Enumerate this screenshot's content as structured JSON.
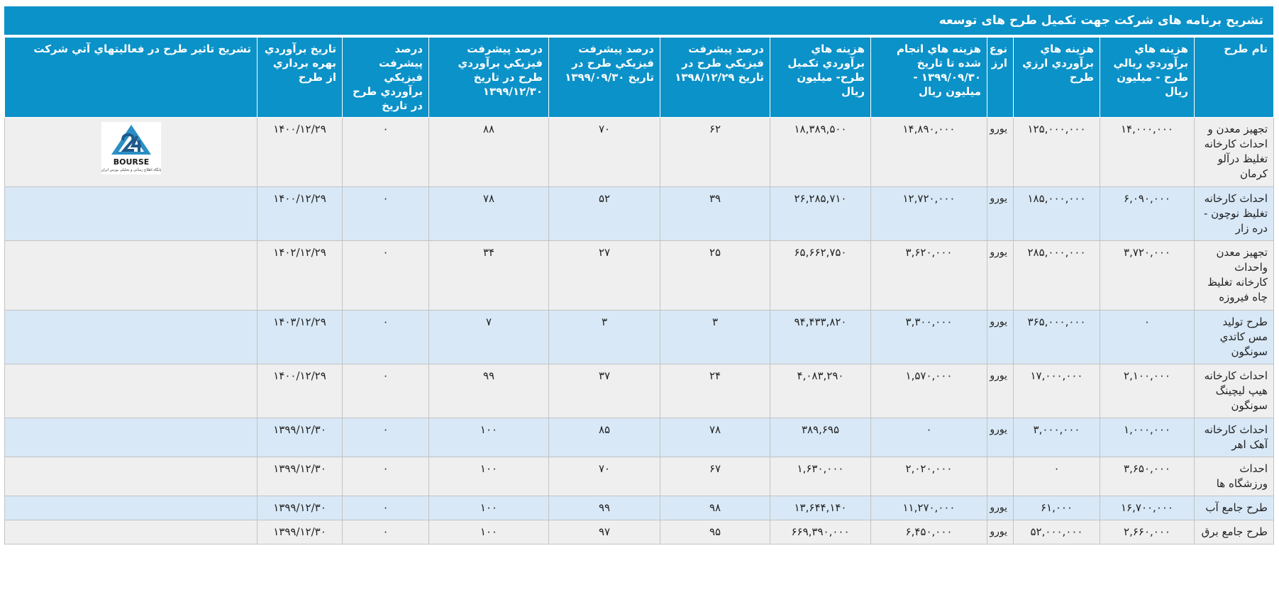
{
  "title": "تشریح برنامه های شرکت جهت تکمیل طرح های توسعه",
  "headers": [
    "نام طرح",
    "هزينه هاي برآوردي ريالي طرح - ميليون ريال",
    "هزينه هاي برآوردي ارزي طرح",
    "نوع ارز",
    "هزينه هاي انجام شده تا تاريخ ۱۳۹۹/۰۹/۳۰ - ميليون ريال",
    "هزينه هاي برآوردي تکميل طرح- ميليون ريال",
    "درصد پيشرفت فيزيکي طرح در تاريخ ۱۳۹۸/۱۲/۲۹",
    "درصد پيشرفت فيزيکي طرح در تاريخ ۱۳۹۹/۰۹/۳۰",
    "درصد پيشرفت فيزيکي برآوردي طرح در تاريخ ۱۳۹۹/۱۲/۳۰",
    "درصد پيشرفت فيزيکي برآوردي طرح در تاريخ",
    "تاريخ برآوردي بهره برداري از طرح",
    "تشريح تاثير طرح در فعاليتهاي آتي شرکت"
  ],
  "logo": {
    "text": "BOURSE",
    "caption": "پایگاه اطلاع رسانی و تحلیلی بورس ایران"
  },
  "rows": [
    [
      "تجهیز معدن و احداث کارخانه تغلیظ درآلو کرمان",
      "۱۴,۰۰۰,۰۰۰",
      "۱۲۵,۰۰۰,۰۰۰",
      "یورو",
      "۱۴,۸۹۰,۰۰۰",
      "۱۸,۳۸۹,۵۰۰",
      "۶۲",
      "۷۰",
      "۸۸",
      "۰",
      "۱۴۰۰/۱۲/۲۹",
      ""
    ],
    [
      "احداث کارخانه تغلیظ نوچون - دره زار",
      "۶,۰۹۰,۰۰۰",
      "۱۸۵,۰۰۰,۰۰۰",
      "یورو",
      "۱۲,۷۲۰,۰۰۰",
      "۲۶,۲۸۵,۷۱۰",
      "۳۹",
      "۵۲",
      "۷۸",
      "۰",
      "۱۴۰۰/۱۲/۲۹",
      ""
    ],
    [
      "تجهیز معدن واحداث کارخانه تغلیظ چاه فیروزه",
      "۳,۷۲۰,۰۰۰",
      "۲۸۵,۰۰۰,۰۰۰",
      "یورو",
      "۳,۶۲۰,۰۰۰",
      "۶۵,۶۶۲,۷۵۰",
      "۲۵",
      "۲۷",
      "۳۴",
      "۰",
      "۱۴۰۲/۱۲/۲۹",
      ""
    ],
    [
      "طرح تولید مس کاتدي سونگون",
      "۰",
      "۳۶۵,۰۰۰,۰۰۰",
      "یورو",
      "۳,۳۰۰,۰۰۰",
      "۹۴,۴۳۳,۸۲۰",
      "۳",
      "۳",
      "۷",
      "۰",
      "۱۴۰۳/۱۲/۲۹",
      ""
    ],
    [
      "احداث کارخانه هیپ لیچینگ سونگون",
      "۲,۱۰۰,۰۰۰",
      "۱۷,۰۰۰,۰۰۰",
      "یورو",
      "۱,۵۷۰,۰۰۰",
      "۴,۰۸۳,۲۹۰",
      "۲۴",
      "۳۷",
      "۹۹",
      "۰",
      "۱۴۰۰/۱۲/۲۹",
      ""
    ],
    [
      "احداث کارخانه آهک اهر",
      "۱,۰۰۰,۰۰۰",
      "۳,۰۰۰,۰۰۰",
      "یورو",
      "۰",
      "۳۸۹,۶۹۵",
      "۷۸",
      "۸۵",
      "۱۰۰",
      "۰",
      "۱۳۹۹/۱۲/۳۰",
      ""
    ],
    [
      "احداث ورزشگاه ها",
      "۳,۶۵۰,۰۰۰",
      "۰",
      "",
      "۲,۰۲۰,۰۰۰",
      "۱,۶۳۰,۰۰۰",
      "۶۷",
      "۷۰",
      "۱۰۰",
      "۰",
      "۱۳۹۹/۱۲/۳۰",
      ""
    ],
    [
      "طرح جامع آب",
      "۱۶,۷۰۰,۰۰۰",
      "۶۱,۰۰۰",
      "یورو",
      "۱۱,۲۷۰,۰۰۰",
      "۱۳,۶۴۴,۱۴۰",
      "۹۸",
      "۹۹",
      "۱۰۰",
      "۰",
      "۱۳۹۹/۱۲/۳۰",
      ""
    ],
    [
      "طرح جامع برق",
      "۲,۶۶۰,۰۰۰",
      "۵۲,۰۰۰,۰۰۰",
      "یورو",
      "۶,۴۵۰,۰۰۰",
      "۶۶۹,۳۹۰,۰۰۰",
      "۹۵",
      "۹۷",
      "۱۰۰",
      "۰",
      "۱۳۹۹/۱۲/۳۰",
      ""
    ]
  ]
}
